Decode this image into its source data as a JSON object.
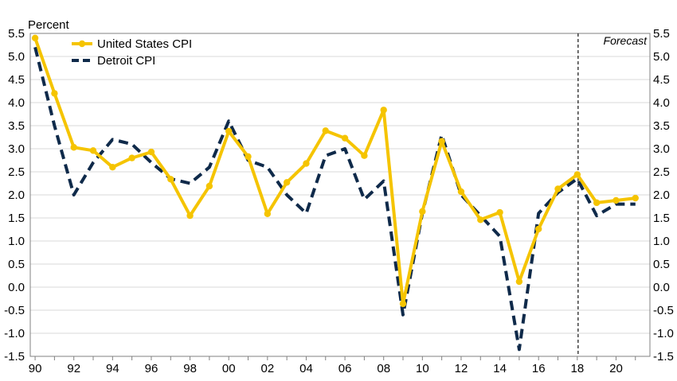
{
  "chart_data": {
    "type": "line",
    "ylabel": "Percent",
    "ylim": [
      -1.5,
      5.5
    ],
    "yticks": [
      -1.5,
      -1.0,
      -0.5,
      0.0,
      0.5,
      1.0,
      1.5,
      2.0,
      2.5,
      3.0,
      3.5,
      4.0,
      4.5,
      5.0,
      5.5
    ],
    "ytick_labels": [
      "-1.5",
      "-1.0",
      "-0.5",
      "0.0",
      "0.5",
      "1.0",
      "1.5",
      "2.0",
      "2.5",
      "3.0",
      "3.5",
      "4.0",
      "4.5",
      "5.0",
      "5.5"
    ],
    "x": [
      1990,
      1991,
      1992,
      1993,
      1994,
      1995,
      1996,
      1997,
      1998,
      1999,
      2000,
      2001,
      2002,
      2003,
      2004,
      2005,
      2006,
      2007,
      2008,
      2009,
      2010,
      2011,
      2012,
      2013,
      2014,
      2015,
      2016,
      2017,
      2018,
      2019,
      2020,
      2021
    ],
    "xticks": [
      1990,
      1992,
      1994,
      1996,
      1998,
      2000,
      2002,
      2004,
      2006,
      2008,
      2010,
      2012,
      2014,
      2016,
      2018,
      2020
    ],
    "xtick_labels": [
      "90",
      "92",
      "94",
      "96",
      "98",
      "00",
      "02",
      "04",
      "06",
      "08",
      "10",
      "12",
      "14",
      "16",
      "18",
      "20"
    ],
    "forecast_start": 2018,
    "forecast_label": "Forecast",
    "grid": true,
    "legend_position": "top-left",
    "series": [
      {
        "name": "United States CPI",
        "color": "#F5C400",
        "style": "solid-markers",
        "values": [
          5.4,
          4.2,
          3.03,
          2.96,
          2.6,
          2.8,
          2.93,
          2.34,
          1.55,
          2.19,
          3.38,
          2.83,
          1.59,
          2.27,
          2.68,
          3.39,
          3.23,
          2.85,
          3.84,
          -0.36,
          1.64,
          3.16,
          2.07,
          1.46,
          1.62,
          0.12,
          1.26,
          2.13,
          2.44,
          1.83,
          1.88,
          1.93
        ]
      },
      {
        "name": "Detroit CPI",
        "color": "#0F2A4A",
        "style": "dashed",
        "values": [
          5.2,
          3.5,
          2.0,
          2.7,
          3.2,
          3.1,
          2.7,
          2.35,
          2.25,
          2.6,
          3.6,
          2.75,
          2.6,
          2.0,
          1.6,
          2.85,
          3.0,
          1.9,
          2.3,
          -0.6,
          1.6,
          3.3,
          2.0,
          1.55,
          1.1,
          -1.35,
          1.6,
          2.05,
          2.35,
          1.55,
          1.8,
          1.8
        ]
      }
    ]
  }
}
